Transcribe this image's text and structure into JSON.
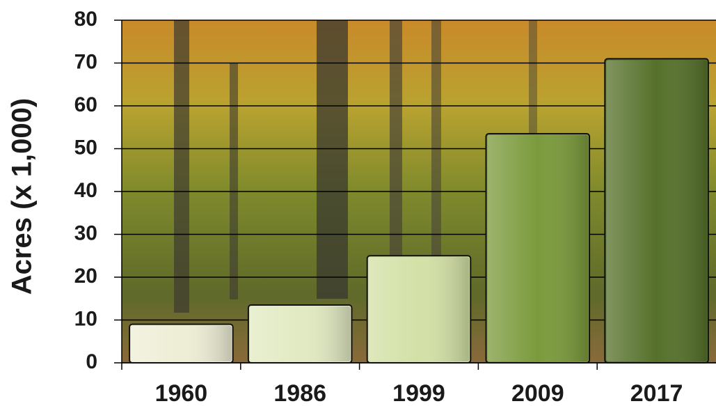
{
  "chart_data": {
    "type": "bar",
    "y_label": "Acres (x 1,000)",
    "categories": [
      "1960",
      "1986",
      "1999",
      "2009",
      "2017"
    ],
    "values": [
      9,
      13.5,
      25,
      53.5,
      71
    ],
    "colors": [
      "#eeeed6",
      "#e2eac2",
      "#d3e0a6",
      "#7b9a3c",
      "#56712b"
    ],
    "ylim": [
      0,
      80
    ],
    "yticks": [
      0,
      10,
      20,
      30,
      40,
      50,
      60,
      70,
      80
    ],
    "grid": true
  }
}
